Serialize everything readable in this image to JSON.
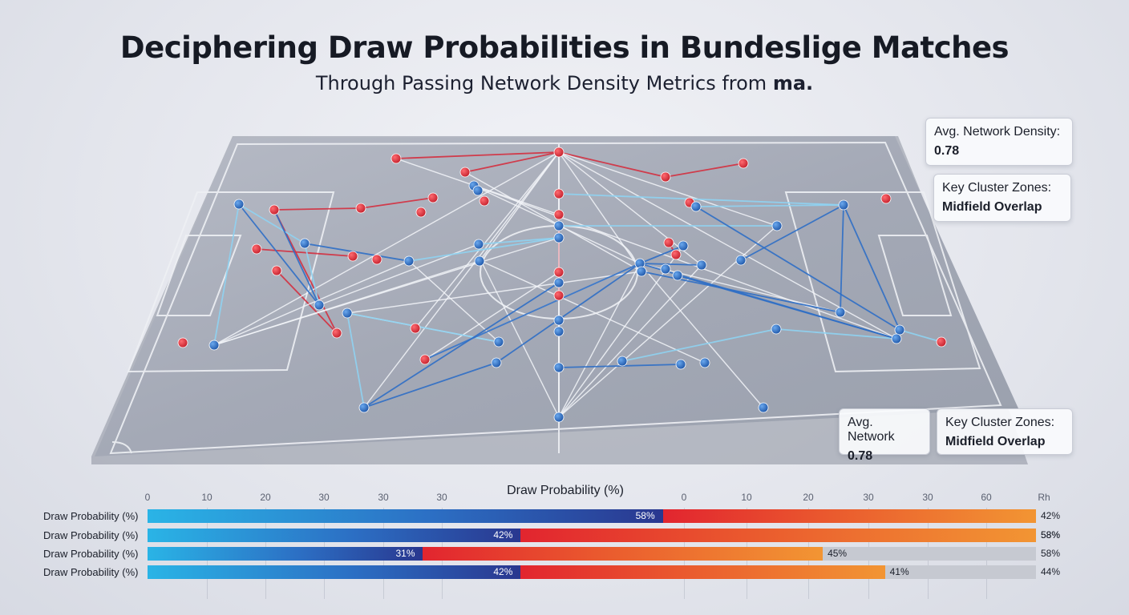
{
  "title": "Deciphering Draw Probabilities in Bundeslige Matches",
  "subtitle": {
    "text": "Through Passing Network Density Metrics from ",
    "bold": "ma."
  },
  "info_cards": [
    {
      "label": "Avg. Network Density:",
      "value": "0.78"
    },
    {
      "label": "Key Cluster Zones:",
      "value": "Midfield Overlap"
    },
    {
      "label": "Avg. Network",
      "value": "0.78"
    },
    {
      "label": "Key Cluster Zones:",
      "value": "Midfield Overlap"
    }
  ],
  "colors": {
    "home_node": "#d42a35",
    "away_node": "#2a6cc2",
    "home_link": "#d43040",
    "away_link": "#2f6fc6",
    "light_link": "#8fd3f2",
    "bar_blue": "#2c6fc4",
    "bar_warm": "#ea5a2e",
    "bar_track": "#c6c9d1"
  },
  "chart_data": {
    "type": "bar",
    "title": "Draw Probability (%)",
    "x_ticks": [
      "0",
      "10",
      "20",
      "30",
      "30",
      "30",
      "",
      "0",
      "10",
      "20",
      "30",
      "30",
      "60",
      "Rh"
    ],
    "rows": [
      {
        "label": "Draw Probability (%)",
        "blue": 58,
        "warm": 42,
        "blue_text": "58%",
        "warm_text": "",
        "right_text": "42%"
      },
      {
        "label": "Draw Probability (%)",
        "blue": 42,
        "warm": 58,
        "blue_text": "42%",
        "warm_text": "58%",
        "right_text": "58%"
      },
      {
        "label": "Draw Probability (%)",
        "blue": 31,
        "warm": 45,
        "blue_text": "31%",
        "warm_text": "45%",
        "right_text": "58%"
      },
      {
        "label": "Draw Probability (%)",
        "blue": 42,
        "warm": 41,
        "blue_text": "42%",
        "warm_text": "41%",
        "right_text": "44%"
      }
    ]
  }
}
